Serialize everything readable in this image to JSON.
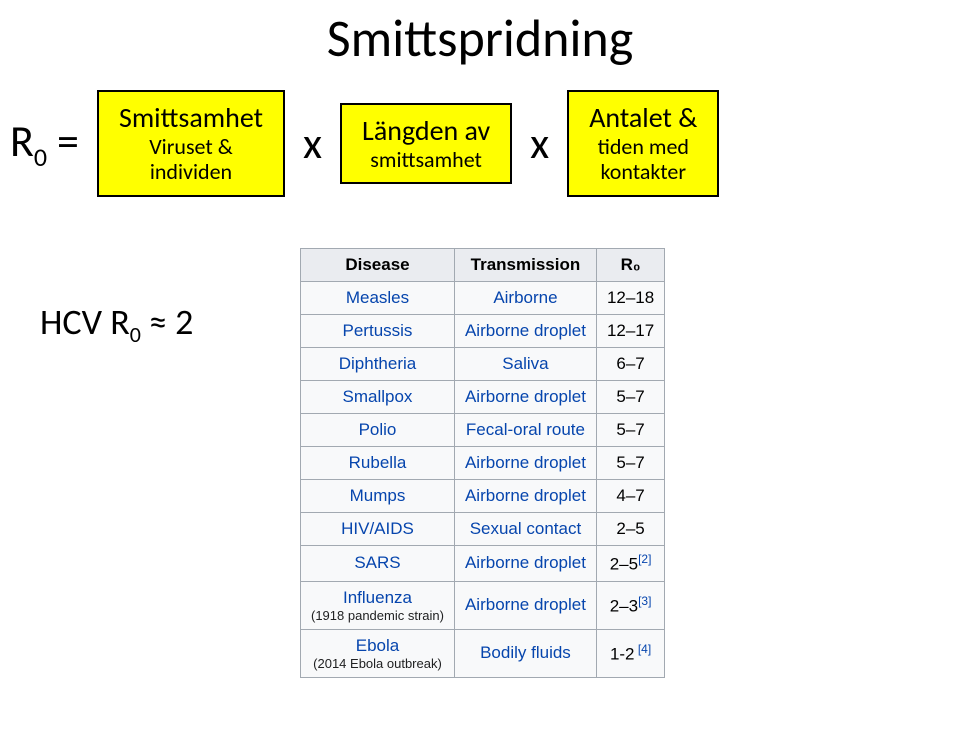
{
  "title": "Smittspridning",
  "formula": {
    "lhs_html": "R<sub>0</sub> =",
    "mult": "x",
    "box1": {
      "line1": "Smittsamhet",
      "line2": "Viruset &",
      "line3": "individen"
    },
    "box2": {
      "line1": "Längden av",
      "line2": "smittsamhet"
    },
    "box3": {
      "line1": "Antalet &",
      "line2": "tiden med",
      "line3": "kontakter"
    }
  },
  "hcv_html": "HCV R<sub>0</sub> ≈ 2",
  "table": {
    "headers": [
      "Disease",
      "Transmission",
      "R₀"
    ],
    "col_is_link": [
      true,
      true,
      false
    ],
    "rows": [
      {
        "disease": "Measles",
        "disease_note": null,
        "transmission": "Airborne",
        "r0": "12–18",
        "ref": null
      },
      {
        "disease": "Pertussis",
        "disease_note": null,
        "transmission": "Airborne droplet",
        "r0": "12–17",
        "ref": null
      },
      {
        "disease": "Diphtheria",
        "disease_note": null,
        "transmission": "Saliva",
        "r0": "6–7",
        "ref": null
      },
      {
        "disease": "Smallpox",
        "disease_note": null,
        "transmission": "Airborne droplet",
        "r0": "5–7",
        "ref": null
      },
      {
        "disease": "Polio",
        "disease_note": null,
        "transmission": "Fecal-oral route",
        "r0": "5–7",
        "ref": null
      },
      {
        "disease": "Rubella",
        "disease_note": null,
        "transmission": "Airborne droplet",
        "r0": "5–7",
        "ref": null
      },
      {
        "disease": "Mumps",
        "disease_note": null,
        "transmission": "Airborne droplet",
        "r0": "4–7",
        "ref": null
      },
      {
        "disease": "HIV/AIDS",
        "disease_note": null,
        "transmission": "Sexual contact",
        "r0": "2–5",
        "ref": null
      },
      {
        "disease": "SARS",
        "disease_note": null,
        "transmission": "Airborne droplet",
        "r0": "2–5",
        "ref": "[2]"
      },
      {
        "disease": "Influenza",
        "disease_note": "(1918 pandemic strain)",
        "transmission": "Airborne droplet",
        "r0": "2–3",
        "ref": "[3]"
      },
      {
        "disease": "Ebola",
        "disease_note": "(2014 Ebola outbreak)",
        "transmission": "Bodily fluids",
        "r0": "1-2",
        "ref": " [4]"
      }
    ]
  },
  "styles": {
    "yellow": "#ffff00",
    "black": "#000000",
    "link_color": "#0645ad",
    "table_border": "#a2a9b1",
    "th_bg": "#eaecf0",
    "td_bg": "#f8f9fa"
  }
}
